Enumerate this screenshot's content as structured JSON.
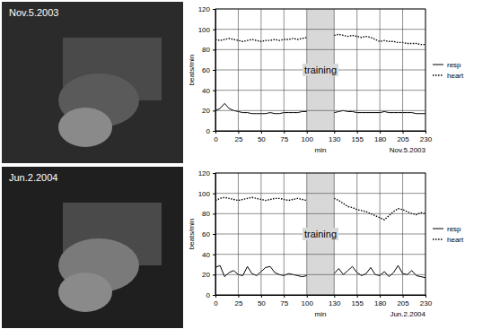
{
  "photos": [
    {
      "label": "Nov.5.2003"
    },
    {
      "label": "Jun.2.2004"
    }
  ],
  "chart_data": [
    {
      "type": "line",
      "subtitle": "Nov.5.2003",
      "x_label": "min",
      "y_label": "beats/min",
      "x": [
        0,
        5,
        10,
        15,
        20,
        25,
        30,
        35,
        40,
        45,
        50,
        55,
        60,
        65,
        70,
        75,
        80,
        85,
        90,
        95,
        100,
        115,
        130,
        135,
        140,
        145,
        150,
        155,
        160,
        165,
        170,
        175,
        180,
        185,
        190,
        195,
        200,
        205,
        210,
        215,
        220,
        225,
        230
      ],
      "series": [
        {
          "name": "resp",
          "color": "#000000",
          "line_style": "solid",
          "values": [
            20,
            22,
            27,
            22,
            20,
            19,
            18,
            18,
            17,
            17,
            17,
            17,
            18,
            17,
            17,
            18,
            18,
            18,
            18,
            19,
            19,
            null,
            18,
            19,
            20,
            19,
            19,
            18,
            18,
            18,
            18,
            18,
            18,
            19,
            18,
            18,
            18,
            18,
            18,
            18,
            17,
            17,
            17
          ]
        },
        {
          "name": "heart",
          "color": "#000000",
          "line_style": "dotted",
          "values": [
            90,
            89,
            90,
            91,
            90,
            89,
            88,
            89,
            90,
            89,
            88,
            89,
            89,
            90,
            89,
            90,
            90,
            91,
            90,
            91,
            92,
            null,
            94,
            95,
            94,
            93,
            94,
            93,
            92,
            93,
            92,
            90,
            88,
            89,
            88,
            88,
            87,
            87,
            86,
            86,
            86,
            85,
            85
          ]
        }
      ],
      "shaded_region": {
        "x": [
          100,
          130
        ],
        "label": "training"
      },
      "xlim": [
        0,
        230
      ],
      "xticks": [
        0,
        25,
        50,
        75,
        100,
        130,
        155,
        180,
        205,
        230
      ],
      "ylim": [
        0,
        120
      ],
      "yticks": [
        0,
        20,
        40,
        60,
        80,
        100,
        120
      ],
      "grid": true,
      "legend": "right"
    },
    {
      "type": "line",
      "subtitle": "Jun.2.2004",
      "x_label": "min",
      "y_label": "beats/min",
      "x": [
        0,
        5,
        10,
        15,
        20,
        25,
        30,
        35,
        40,
        45,
        50,
        55,
        60,
        65,
        70,
        75,
        80,
        85,
        90,
        95,
        100,
        115,
        130,
        135,
        140,
        145,
        150,
        155,
        160,
        165,
        170,
        175,
        180,
        185,
        190,
        195,
        200,
        205,
        210,
        215,
        220,
        225,
        230
      ],
      "series": [
        {
          "name": "resp",
          "color": "#000000",
          "line_style": "solid",
          "values": [
            27,
            29,
            18,
            22,
            24,
            20,
            19,
            28,
            21,
            19,
            23,
            27,
            28,
            22,
            20,
            19,
            21,
            20,
            19,
            18,
            19,
            null,
            21,
            26,
            20,
            24,
            28,
            22,
            19,
            21,
            27,
            20,
            19,
            23,
            18,
            22,
            29,
            21,
            20,
            24,
            19,
            18,
            17
          ]
        },
        {
          "name": "heart",
          "color": "#000000",
          "line_style": "dotted",
          "values": [
            93,
            95,
            96,
            95,
            94,
            93,
            94,
            95,
            96,
            95,
            94,
            93,
            94,
            95,
            95,
            94,
            93,
            94,
            95,
            94,
            93,
            null,
            95,
            93,
            90,
            87,
            86,
            84,
            83,
            82,
            80,
            78,
            76,
            74,
            78,
            82,
            85,
            84,
            82,
            80,
            79,
            81,
            80
          ]
        }
      ],
      "shaded_region": {
        "x": [
          100,
          130
        ],
        "label": "training"
      },
      "xlim": [
        0,
        230
      ],
      "xticks": [
        0,
        25,
        50,
        75,
        100,
        130,
        155,
        180,
        205,
        230
      ],
      "ylim": [
        0,
        120
      ],
      "yticks": [
        0,
        20,
        40,
        60,
        80,
        100,
        120
      ],
      "grid": true,
      "legend": "right"
    }
  ]
}
